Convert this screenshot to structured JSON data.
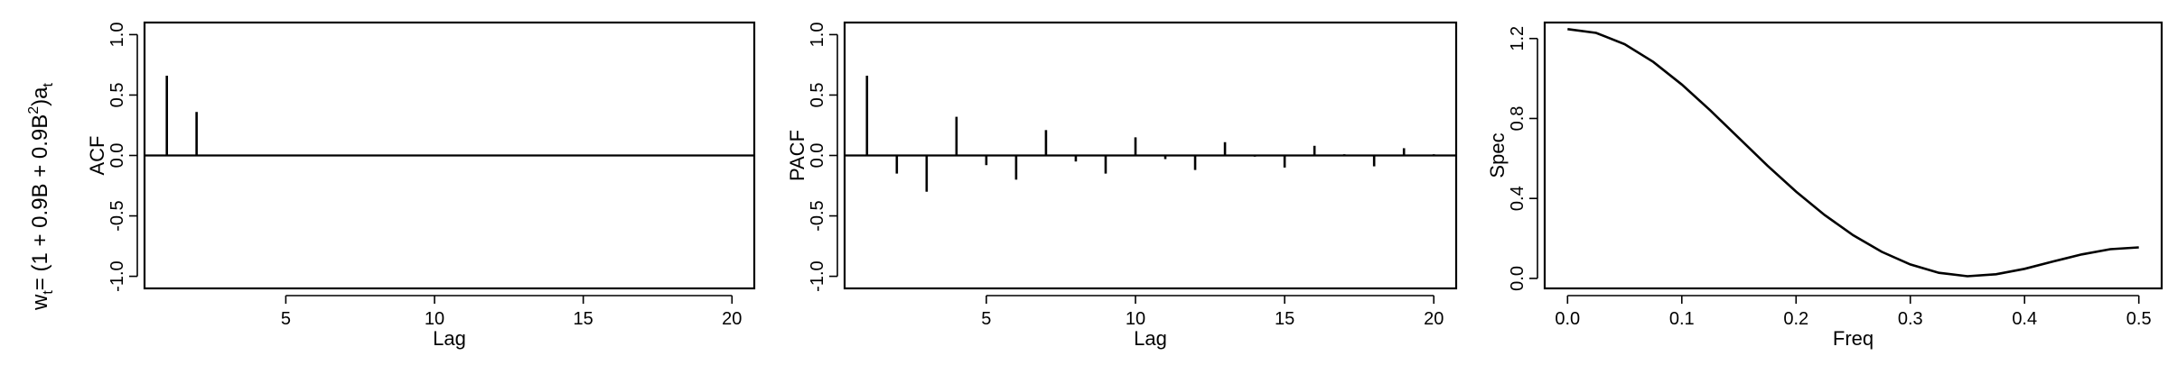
{
  "row_label": {
    "w": "w",
    "t": "t",
    "eq": "= (1 + 0.9B + 0.9B",
    "sup": "2",
    "close": ")a",
    "t2": "t"
  },
  "chart_data": [
    {
      "type": "bar",
      "ylabel": "ACF",
      "xlabel": "Lag",
      "xlim": [
        0.25,
        20.75
      ],
      "ylim": [
        -1.1,
        1.1
      ],
      "xticks": [
        5,
        10,
        15,
        20
      ],
      "yticks": [
        -1.0,
        -0.5,
        0.0,
        0.5,
        1.0
      ],
      "ytick_labels": [
        "-1.0",
        "-0.5",
        "0.0",
        "0.5",
        "1.0"
      ],
      "x": [
        1,
        2,
        3,
        4,
        5,
        6,
        7,
        8,
        9,
        10,
        11,
        12,
        13,
        14,
        15,
        16,
        17,
        18,
        19,
        20
      ],
      "values": [
        0.66,
        0.36,
        0,
        0,
        0,
        0,
        0,
        0,
        0,
        0,
        0,
        0,
        0,
        0,
        0,
        0,
        0,
        0,
        0,
        0
      ]
    },
    {
      "type": "bar",
      "ylabel": "PACF",
      "xlabel": "Lag",
      "xlim": [
        0.25,
        20.75
      ],
      "ylim": [
        -1.1,
        1.1
      ],
      "xticks": [
        5,
        10,
        15,
        20
      ],
      "yticks": [
        -1.0,
        -0.5,
        0.0,
        0.5,
        1.0
      ],
      "ytick_labels": [
        "-1.0",
        "-0.5",
        "0.0",
        "0.5",
        "1.0"
      ],
      "x": [
        1,
        2,
        3,
        4,
        5,
        6,
        7,
        8,
        9,
        10,
        11,
        12,
        13,
        14,
        15,
        16,
        17,
        18,
        19,
        20
      ],
      "values": [
        0.66,
        -0.15,
        -0.3,
        0.32,
        -0.08,
        -0.2,
        0.21,
        -0.05,
        -0.15,
        0.15,
        -0.03,
        -0.12,
        0.11,
        -0.01,
        -0.1,
        0.08,
        0.01,
        -0.09,
        0.06,
        0.01
      ]
    },
    {
      "type": "line",
      "ylabel": "Spec",
      "xlabel": "Freq",
      "xlim": [
        -0.02,
        0.52
      ],
      "ylim": [
        -0.05,
        1.28
      ],
      "xticks": [
        0.0,
        0.1,
        0.2,
        0.3,
        0.4,
        0.5
      ],
      "xtick_labels": [
        "0.0",
        "0.1",
        "0.2",
        "0.3",
        "0.4",
        "0.5"
      ],
      "yticks": [
        0.0,
        0.4,
        0.8,
        1.2
      ],
      "ytick_labels": [
        "0.0",
        "0.4",
        "0.8",
        "1.2"
      ],
      "x": [
        0.0,
        0.025,
        0.05,
        0.075,
        0.1,
        0.125,
        0.15,
        0.175,
        0.2,
        0.225,
        0.25,
        0.275,
        0.3,
        0.325,
        0.35,
        0.375,
        0.4,
        0.425,
        0.45,
        0.475,
        0.5
      ],
      "values": [
        1.247,
        1.228,
        1.172,
        1.083,
        0.97,
        0.84,
        0.702,
        0.564,
        0.434,
        0.317,
        0.216,
        0.133,
        0.07,
        0.028,
        0.011,
        0.021,
        0.048,
        0.085,
        0.12,
        0.146,
        0.155
      ]
    }
  ]
}
